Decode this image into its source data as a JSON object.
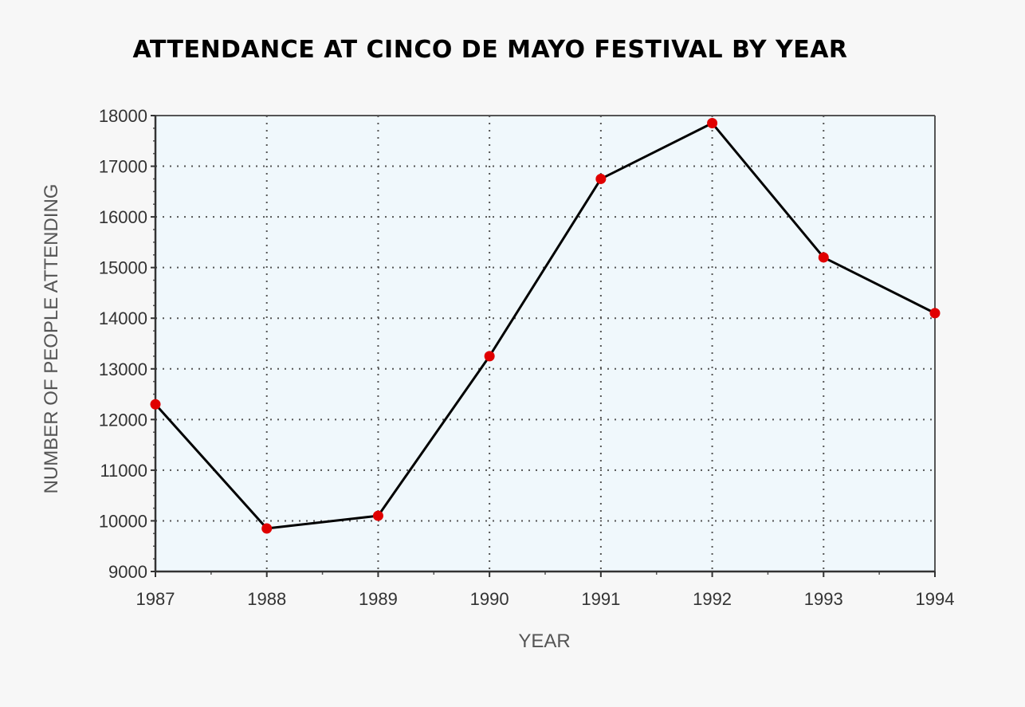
{
  "chart_data": {
    "type": "line",
    "title": "ATTENDANCE AT CINCO DE MAYO FESTIVAL BY YEAR",
    "xlabel": "YEAR",
    "ylabel": "NUMBER OF PEOPLE ATTENDING",
    "x": [
      1987,
      1988,
      1989,
      1990,
      1991,
      1992,
      1993,
      1994
    ],
    "series": [
      {
        "values": [
          12300,
          9850,
          10100,
          13250,
          16750,
          17850,
          15200,
          14100
        ]
      }
    ],
    "ylim": [
      9000,
      18000
    ],
    "yticks": [
      9000,
      10000,
      11000,
      12000,
      13000,
      14000,
      15000,
      16000,
      17000,
      18000
    ],
    "grid": true,
    "colors": {
      "line": "#000000",
      "marker": "#e00000",
      "plot_background": "#f0f8fc",
      "grid": "#555555"
    }
  }
}
